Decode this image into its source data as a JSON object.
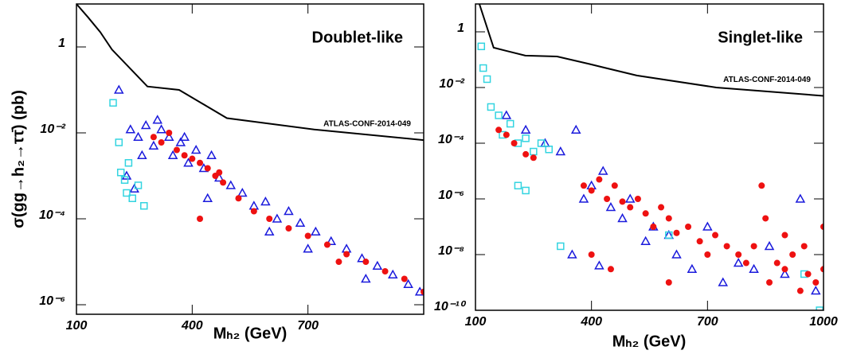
{
  "chart_data": [
    {
      "type": "scatter",
      "ylabel": "σ(gg→h₂→ττ̄) (pb)",
      "xlabel": "Mₕ₂ (GeV)",
      "annotation": "Doublet-like",
      "xlim": [
        100,
        1000
      ],
      "xticks": [
        100,
        400,
        700
      ],
      "ylim": [
        6e-07,
        10
      ],
      "ylog": true,
      "yticks": [
        1,
        {
          "value": 0.01,
          "label": "10⁻²"
        },
        {
          "value": 0.0001,
          "label": "10⁻⁴"
        },
        {
          "value": 1e-06,
          "label": "10⁻⁶"
        }
      ],
      "series": [
        {
          "name": "ATLAS-CONF-2014-049",
          "kind": "line",
          "color": "#000000",
          "x": [
            100,
            130,
            162,
            192,
            284,
            366,
            490,
            716,
            1000
          ],
          "values": [
            10,
            4.9,
            2.2,
            0.87,
            0.12,
            0.1,
            0.022,
            0.012,
            0.0068
          ]
        },
        {
          "kind": "points",
          "marker": "triangle",
          "color": "#1a1adc",
          "x": [
            210,
            240,
            260,
            280,
            300,
            320,
            340,
            350,
            370,
            390,
            410,
            430,
            450,
            470,
            500,
            530,
            560,
            590,
            620,
            650,
            680,
            720,
            760,
            800,
            840,
            880,
            920,
            960,
            990,
            250,
            230,
            310,
            440,
            600,
            700,
            850,
            380,
            270
          ],
          "values": [
            0.1,
            0.012,
            0.008,
            0.015,
            0.005,
            0.012,
            0.008,
            0.003,
            0.006,
            0.002,
            0.004,
            0.0015,
            0.003,
            0.0009,
            0.0006,
            0.0004,
            0.0002,
            0.00025,
            0.0001,
            0.00015,
            8e-05,
            5e-05,
            3e-05,
            2e-05,
            1.2e-05,
            8e-06,
            5e-06,
            3e-06,
            2e-06,
            0.0005,
            0.001,
            0.02,
            0.0003,
            5e-05,
            2e-05,
            4e-06,
            0.008,
            0.003
          ]
        },
        {
          "kind": "points",
          "marker": "square",
          "color": "#33d4e0",
          "x": [
            195,
            210,
            215,
            225,
            230,
            245,
            260,
            275,
            235
          ],
          "values": [
            0.05,
            0.006,
            0.0012,
            0.0008,
            0.0004,
            0.0003,
            0.0006,
            0.0002,
            0.002
          ]
        },
        {
          "kind": "points",
          "marker": "circle",
          "color": "#ee1111",
          "x": [
            300,
            320,
            340,
            360,
            380,
            400,
            420,
            440,
            460,
            480,
            420,
            520,
            560,
            600,
            650,
            700,
            750,
            800,
            850,
            900,
            950,
            1000,
            470,
            780
          ],
          "values": [
            0.008,
            0.006,
            0.01,
            0.004,
            0.003,
            0.0025,
            0.002,
            0.0015,
            0.001,
            0.0007,
            0.0001,
            0.0003,
            0.00015,
            0.0001,
            6e-05,
            4e-05,
            2.5e-05,
            1.5e-05,
            1e-05,
            6e-06,
            4e-06,
            2e-06,
            0.0012,
            1e-05
          ]
        }
      ]
    },
    {
      "type": "scatter",
      "xlabel": "Mₕ₂ (GeV)",
      "annotation": "Singlet-like",
      "xlim": [
        100,
        1000
      ],
      "xticks": [
        100,
        400,
        700,
        1000
      ],
      "ylim": [
        1e-10,
        10
      ],
      "ylog": true,
      "yticks": [
        1,
        {
          "value": 0.01,
          "label": "10⁻²"
        },
        {
          "value": 0.0001,
          "label": "10⁻⁴"
        },
        {
          "value": 1e-06,
          "label": "10⁻⁶"
        },
        {
          "value": 1e-08,
          "label": "10⁻⁸"
        },
        {
          "value": 1e-10,
          "label": "10⁻¹⁰"
        }
      ],
      "series": [
        {
          "name": "ATLAS-CONF-2014-049",
          "kind": "line",
          "color": "#000000",
          "x": [
            110,
            147,
            229,
            311,
            394,
            517,
            723,
            1000
          ],
          "values": [
            10,
            0.27,
            0.14,
            0.13,
            0.07,
            0.027,
            0.01,
            0.005
          ]
        },
        {
          "kind": "points",
          "marker": "triangle",
          "color": "#1a1adc",
          "x": [
            180,
            230,
            280,
            320,
            360,
            380,
            400,
            430,
            450,
            480,
            500,
            540,
            560,
            600,
            620,
            660,
            700,
            740,
            780,
            820,
            860,
            900,
            940,
            980,
            350,
            420
          ],
          "values": [
            0.001,
            0.0003,
            0.0001,
            5e-05,
            0.0003,
            1e-06,
            3e-06,
            1e-05,
            5e-07,
            2e-07,
            1e-06,
            3e-08,
            1e-07,
            5e-08,
            1e-08,
            3e-09,
            1e-07,
            1e-09,
            5e-09,
            3e-09,
            2e-08,
            2e-09,
            1e-06,
            5e-10,
            1e-08,
            4e-09
          ]
        },
        {
          "kind": "points",
          "marker": "square",
          "color": "#33d4e0",
          "x": [
            115,
            120,
            130,
            140,
            160,
            170,
            190,
            210,
            230,
            250,
            270,
            290,
            210,
            230,
            600,
            950,
            990,
            320
          ],
          "values": [
            0.3,
            0.05,
            0.02,
            0.002,
            0.001,
            0.0002,
            0.0005,
            0.0001,
            0.00015,
            5e-05,
            0.0001,
            6e-05,
            3e-06,
            2e-06,
            5e-08,
            2e-09,
            1e-10,
            2e-08
          ]
        },
        {
          "kind": "points",
          "marker": "circle",
          "color": "#ee1111",
          "x": [
            160,
            180,
            200,
            230,
            250,
            380,
            400,
            420,
            440,
            460,
            480,
            500,
            520,
            540,
            560,
            580,
            600,
            620,
            650,
            680,
            700,
            720,
            750,
            780,
            800,
            820,
            840,
            860,
            880,
            900,
            920,
            940,
            960,
            980,
            1000,
            850,
            900,
            950,
            1000,
            400,
            450,
            600
          ],
          "values": [
            0.0003,
            0.0002,
            0.0001,
            4e-05,
            3e-05,
            3e-06,
            2e-06,
            5e-06,
            1e-06,
            3e-06,
            8e-07,
            5e-07,
            1e-06,
            3e-07,
            1e-07,
            5e-07,
            2e-07,
            6e-08,
            1e-07,
            3e-08,
            1e-08,
            5e-08,
            2e-08,
            1e-08,
            5e-09,
            2e-08,
            3e-06,
            1e-09,
            5e-09,
            3e-09,
            1e-08,
            5e-10,
            2e-09,
            1e-09,
            3e-09,
            2e-07,
            5e-08,
            2e-08,
            1e-07,
            1e-08,
            3e-09,
            1e-09
          ]
        }
      ]
    }
  ]
}
